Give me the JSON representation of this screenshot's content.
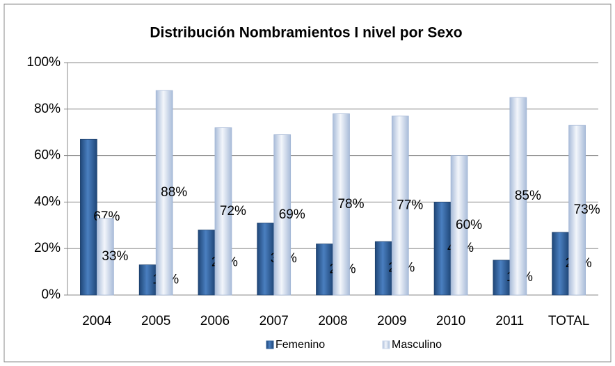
{
  "chart_data": {
    "type": "bar",
    "title": "Distribución Nombramientos I nivel por Sexo",
    "categories": [
      "2004",
      "2005",
      "2006",
      "2007",
      "2008",
      "2009",
      "2010",
      "2011",
      "TOTAL"
    ],
    "series": [
      {
        "name": "Femenino",
        "color": "#2e5f99",
        "values": [
          67,
          13,
          28,
          31,
          22,
          23,
          40,
          15,
          27
        ],
        "value_labels": [
          "67%",
          "13%",
          "28%",
          "31%",
          "22%",
          "23%",
          "40%",
          "15%",
          "27%"
        ]
      },
      {
        "name": "Masculino",
        "color": "#c9d6ea",
        "values": [
          33,
          88,
          72,
          69,
          78,
          77,
          60,
          85,
          73
        ],
        "value_labels": [
          "33%",
          "88%",
          "72%",
          "69%",
          "78%",
          "77%",
          "60%",
          "85%",
          "73%"
        ]
      }
    ],
    "ylim": [
      0,
      100
    ],
    "yticks": [
      {
        "value": 0,
        "label": "0%"
      },
      {
        "value": 20,
        "label": "20%"
      },
      {
        "value": 40,
        "label": "40%"
      },
      {
        "value": 60,
        "label": "60%"
      },
      {
        "value": 80,
        "label": "80%"
      },
      {
        "value": 100,
        "label": "100%"
      }
    ],
    "grid": true,
    "legend": "bottom"
  }
}
